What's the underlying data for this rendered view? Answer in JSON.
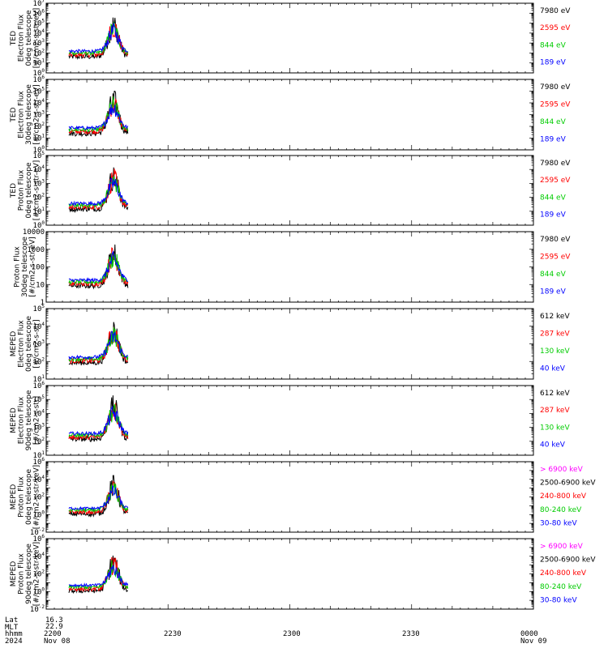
{
  "chart_data": [
    {
      "type": "line",
      "ylabel": [
        "TED",
        "Electron Flux",
        "0deg telescope",
        "[#/cm2-s-str-eV]"
      ],
      "yscale": "log",
      "ylim_exp": [
        0,
        7
      ],
      "ytick_labels": [
        "10^0",
        "10^1",
        "10^2",
        "10^3",
        "10^4",
        "10^5",
        "10^6",
        "10^7"
      ],
      "legend": [
        {
          "label": "7980 eV",
          "color": "#000000"
        },
        {
          "label": "2595 eV",
          "color": "#ff0000"
        },
        {
          "label": "844 eV",
          "color": "#00cc00"
        },
        {
          "label": "189 eV",
          "color": "#0000ff"
        }
      ]
    },
    {
      "type": "line",
      "ylabel": [
        "TED",
        "Electron Flux",
        "30deg telescope",
        "[#/cm2-s-str-eV]"
      ],
      "yscale": "log",
      "ylim_exp": [
        0,
        6
      ],
      "ytick_labels": [
        "10^0",
        "10^1",
        "10^2",
        "10^3",
        "10^4",
        "10^5",
        "10^6"
      ],
      "legend": [
        {
          "label": "7980 eV",
          "color": "#000000"
        },
        {
          "label": "2595 eV",
          "color": "#ff0000"
        },
        {
          "label": "844 eV",
          "color": "#00cc00"
        },
        {
          "label": "189 eV",
          "color": "#0000ff"
        }
      ]
    },
    {
      "type": "line",
      "ylabel": [
        "TED",
        "Proton Flux",
        "0deg telescope",
        "[#/cm2-s-str-eV]"
      ],
      "yscale": "log",
      "ylim_exp": [
        0,
        5
      ],
      "ytick_labels": [
        "10^0",
        "10^1",
        "10^2",
        "10^3",
        "10^4",
        "10^5"
      ],
      "legend": [
        {
          "label": "7980 eV",
          "color": "#000000"
        },
        {
          "label": "2595 eV",
          "color": "#ff0000"
        },
        {
          "label": "844 eV",
          "color": "#00cc00"
        },
        {
          "label": "189 eV",
          "color": "#0000ff"
        }
      ]
    },
    {
      "type": "line",
      "ylabel": [
        "Proton Flux",
        "30deg telescope",
        "[#/cm2-s-str-eV]"
      ],
      "yscale": "log",
      "ylim_exp": [
        0,
        4
      ],
      "ytick_labels": [
        "1",
        "10",
        "100",
        "1000",
        "10000"
      ],
      "legend": [
        {
          "label": "7980 eV",
          "color": "#000000"
        },
        {
          "label": "2595 eV",
          "color": "#ff0000"
        },
        {
          "label": "844 eV",
          "color": "#00cc00"
        },
        {
          "label": "189 eV",
          "color": "#0000ff"
        }
      ]
    },
    {
      "type": "line",
      "ylabel": [
        "MEPED",
        "Electron Flux",
        "0deg telescope",
        "[#/cm2-s-str]"
      ],
      "yscale": "log",
      "ylim_exp": [
        1,
        5
      ],
      "ytick_labels": [
        "10^1",
        "10^2",
        "10^3",
        "10^4",
        "10^5"
      ],
      "legend": [
        {
          "label": "612 keV",
          "color": "#000000"
        },
        {
          "label": "287 keV",
          "color": "#ff0000"
        },
        {
          "label": "130 keV",
          "color": "#00cc00"
        },
        {
          "label": "40 keV",
          "color": "#0000ff"
        }
      ]
    },
    {
      "type": "line",
      "ylabel": [
        "MEPED",
        "Electron Flux",
        "90deg telescope",
        "[#/cm2-s-str]"
      ],
      "yscale": "log",
      "ylim_exp": [
        1,
        6
      ],
      "ytick_labels": [
        "10^1",
        "10^2",
        "10^3",
        "10^4",
        "10^5",
        "10^6"
      ],
      "legend": [
        {
          "label": "612 keV",
          "color": "#000000"
        },
        {
          "label": "287 keV",
          "color": "#ff0000"
        },
        {
          "label": "130 keV",
          "color": "#00cc00"
        },
        {
          "label": "40 keV",
          "color": "#0000ff"
        }
      ]
    },
    {
      "type": "line",
      "ylabel": [
        "MEPED",
        "Proton Flux",
        "0deg telescope",
        "[#/cm2-s-str-keV]"
      ],
      "yscale": "log",
      "ylim_exp": [
        -2,
        6
      ],
      "ytick_labels": [
        "10^-2",
        "10^0",
        "10^2",
        "10^4",
        "10^6"
      ],
      "legend": [
        {
          "label": "> 6900 keV",
          "color": "#ff00ff"
        },
        {
          "label": "2500-6900 keV",
          "color": "#000000"
        },
        {
          "label": "240-800 keV",
          "color": "#ff0000"
        },
        {
          "label": "80-240 keV",
          "color": "#00cc00"
        },
        {
          "label": "30-80 keV",
          "color": "#0000ff"
        }
      ]
    },
    {
      "type": "line",
      "ylabel": [
        "MEPED",
        "Proton Flux",
        "90deg telescope",
        "[#/cm2-s-str-keV]"
      ],
      "yscale": "log",
      "ylim_exp": [
        -2,
        6
      ],
      "ytick_labels": [
        "10^-2",
        "10^0",
        "10^2",
        "10^4",
        "10^6"
      ],
      "legend": [
        {
          "label": "> 6900 keV",
          "color": "#ff00ff"
        },
        {
          "label": "2500-6900 keV",
          "color": "#000000"
        },
        {
          "label": "240-800 keV",
          "color": "#ff0000"
        },
        {
          "label": "80-240 keV",
          "color": "#00cc00"
        },
        {
          "label": "30-80 keV",
          "color": "#0000ff"
        }
      ]
    }
  ],
  "x_axis": {
    "ticks": [
      "2200",
      "2230",
      "2300",
      "2330",
      "0000"
    ],
    "date_left": "Nov 08",
    "date_right": "Nov 09"
  },
  "footer": {
    "rows": [
      "Lat",
      "MLT",
      "hhmm",
      "2024"
    ],
    "lat_value": "16.3",
    "mlt_value": "22.9"
  }
}
